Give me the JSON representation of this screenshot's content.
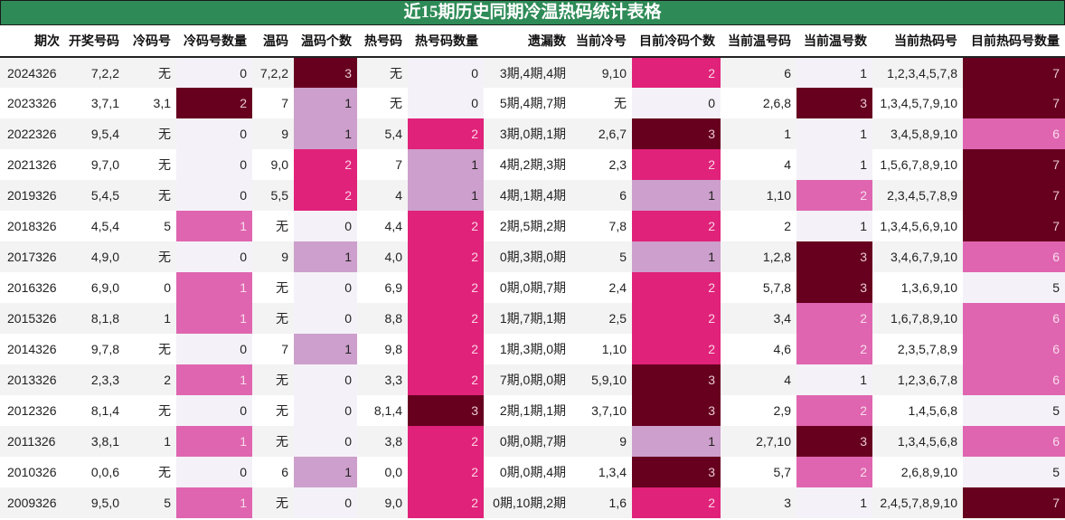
{
  "title": "近15期历史同期冷温热码统计表格",
  "columns": [
    "期次",
    "开奖号码",
    "冷码号",
    "冷码号数量",
    "温码",
    "温码个数",
    "热号码",
    "热号码数量",
    "遗漏数",
    "当前冷号",
    "目前冷码个数",
    "当前温号码",
    "当前温号数",
    "当前热码号",
    "目前热码号数量"
  ],
  "colors": {
    "header_green": "#2e8b57",
    "level_dark": "#67001f",
    "level_magenta": "#e0227a",
    "level_pink": "#df65b0",
    "level_lilac": "#cd9fcc",
    "level_none": "#f4f2f8"
  },
  "rows": [
    [
      "2024326",
      "7,2,2",
      "无",
      "0",
      "7,2,2",
      "3",
      "无",
      "0",
      "3期,4期,4期",
      "9,10",
      "2",
      "6",
      "1",
      "1,2,3,4,5,7,8",
      "7"
    ],
    [
      "2023326",
      "3,7,1",
      "3,1",
      "2",
      "7",
      "1",
      "无",
      "0",
      "5期,4期,7期",
      "无",
      "0",
      "2,6,8",
      "3",
      "1,3,4,5,7,9,10",
      "7"
    ],
    [
      "2022326",
      "9,5,4",
      "无",
      "0",
      "9",
      "1",
      "5,4",
      "2",
      "3期,0期,1期",
      "2,6,7",
      "3",
      "1",
      "1",
      "3,4,5,8,9,10",
      "6"
    ],
    [
      "2021326",
      "9,7,0",
      "无",
      "0",
      "9,0",
      "2",
      "7",
      "1",
      "4期,2期,3期",
      "2,3",
      "2",
      "4",
      "1",
      "1,5,6,7,8,9,10",
      "7"
    ],
    [
      "2019326",
      "5,4,5",
      "无",
      "0",
      "5,5",
      "2",
      "4",
      "1",
      "4期,1期,4期",
      "6",
      "1",
      "1,10",
      "2",
      "2,3,4,5,7,8,9",
      "7"
    ],
    [
      "2018326",
      "4,5,4",
      "5",
      "1",
      "无",
      "0",
      "4,4",
      "2",
      "2期,5期,2期",
      "7,8",
      "2",
      "2",
      "1",
      "1,3,4,5,6,9,10",
      "7"
    ],
    [
      "2017326",
      "4,9,0",
      "无",
      "0",
      "9",
      "1",
      "4,0",
      "2",
      "0期,3期,0期",
      "5",
      "1",
      "1,2,8",
      "3",
      "3,4,6,7,9,10",
      "6"
    ],
    [
      "2016326",
      "6,9,0",
      "0",
      "1",
      "无",
      "0",
      "6,9",
      "2",
      "0期,0期,7期",
      "2,4",
      "2",
      "5,7,8",
      "3",
      "1,3,6,9,10",
      "5"
    ],
    [
      "2015326",
      "8,1,8",
      "1",
      "1",
      "无",
      "0",
      "8,8",
      "2",
      "1期,7期,1期",
      "2,5",
      "2",
      "3,4",
      "2",
      "1,6,7,8,9,10",
      "6"
    ],
    [
      "2014326",
      "9,7,8",
      "无",
      "0",
      "7",
      "1",
      "9,8",
      "2",
      "1期,3期,0期",
      "1,10",
      "2",
      "4,6",
      "2",
      "2,3,5,7,8,9",
      "6"
    ],
    [
      "2013326",
      "2,3,3",
      "2",
      "1",
      "无",
      "0",
      "3,3",
      "2",
      "7期,0期,0期",
      "5,9,10",
      "3",
      "4",
      "1",
      "1,2,3,6,7,8",
      "6"
    ],
    [
      "2012326",
      "8,1,4",
      "无",
      "0",
      "无",
      "0",
      "8,1,4",
      "3",
      "2期,1期,1期",
      "3,7,10",
      "3",
      "2,9",
      "2",
      "1,4,5,6,8",
      "5"
    ],
    [
      "2011326",
      "3,8,1",
      "1",
      "1",
      "无",
      "0",
      "3,8",
      "2",
      "0期,0期,7期",
      "9",
      "1",
      "2,7,10",
      "3",
      "1,3,4,5,6,8",
      "6"
    ],
    [
      "2010326",
      "0,0,6",
      "无",
      "0",
      "6",
      "1",
      "0,0",
      "2",
      "0期,0期,4期",
      "1,3,4",
      "3",
      "5,7",
      "2",
      "2,6,8,9,10",
      "5"
    ],
    [
      "2009326",
      "9,5,0",
      "5",
      "1",
      "无",
      "0",
      "9,0",
      "2",
      "0期,10期,2期",
      "1,6",
      "2",
      "3",
      "1",
      "2,4,5,7,8,9,10",
      "7"
    ]
  ]
}
